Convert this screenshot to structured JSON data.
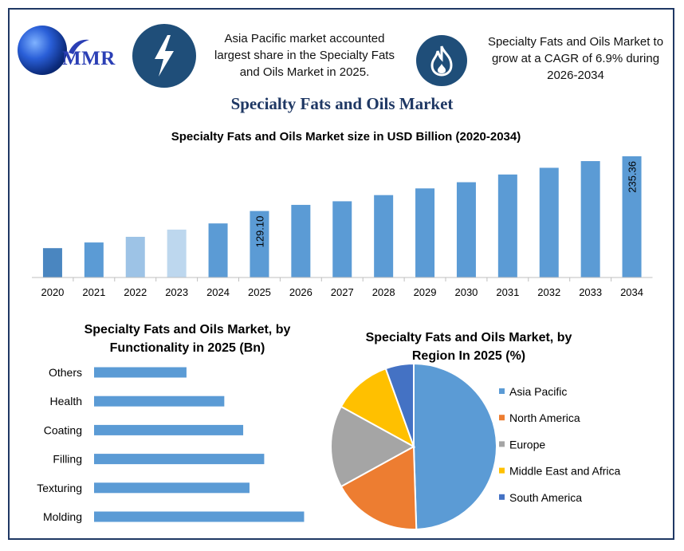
{
  "brand": {
    "logo_text": "MMR"
  },
  "headlines": {
    "left": "Asia Pacific market accounted largest share in the Specialty Fats and Oils Market in 2025.",
    "right": "Specialty Fats and Oils Market to grow at a CAGR of 6.9% during 2026-2034",
    "left_icon": "lightning-icon",
    "right_icon": "flame-icon"
  },
  "page_title": "Specialty Fats and Oils Market",
  "colors": {
    "dark_blue": "#1f4e79",
    "bar_blue": "#5b9bd5",
    "navy": "#1f3864"
  },
  "chart_data": [
    {
      "type": "bar",
      "title": "Specialty Fats and Oils Market size in USD Billion (2020-2034)",
      "categories": [
        "2020",
        "2021",
        "2022",
        "2023",
        "2024",
        "2025",
        "2026",
        "2027",
        "2028",
        "2029",
        "2030",
        "2031",
        "2032",
        "2033",
        "2034"
      ],
      "values": [
        57,
        68,
        79,
        93,
        105,
        129.1,
        141,
        148,
        160,
        173,
        185,
        200,
        213,
        226,
        235.36
      ],
      "data_labels": [
        {
          "category": "2025",
          "label": "129.10"
        },
        {
          "category": "2034",
          "label": "235.36"
        }
      ],
      "bar_colors": [
        "#4a86c0",
        "#5b9bd5",
        "#9dc3e6",
        "#bdd7ee",
        "#5b9bd5",
        "#5b9bd5",
        "#5b9bd5",
        "#5b9bd5",
        "#5b9bd5",
        "#5b9bd5",
        "#5b9bd5",
        "#5b9bd5",
        "#5b9bd5",
        "#5b9bd5",
        "#5b9bd5"
      ],
      "ylim": [
        0,
        240
      ],
      "grid": false,
      "y_axis_visible": false
    },
    {
      "type": "bar",
      "orientation": "horizontal",
      "title": "Specialty Fats and Oils Market, by Functionality in 2025 (Bn)",
      "categories": [
        "Others",
        "Health",
        "Coating",
        "Filling",
        "Texturing",
        "Molding"
      ],
      "values": [
        22,
        31,
        35.5,
        40.5,
        37,
        50
      ],
      "xlim": [
        0,
        52
      ],
      "grid": false
    },
    {
      "type": "pie",
      "title": "Specialty Fats and Oils Market, by Region In 2025 (%)",
      "labels": [
        "Asia Pacific",
        "North America",
        "Europe",
        "Middle East and Africa",
        "South America"
      ],
      "values": [
        49.5,
        17.5,
        16,
        11.5,
        5.5
      ],
      "colors": [
        "#5b9bd5",
        "#ed7d31",
        "#a5a5a5",
        "#ffc000",
        "#4472c4"
      ],
      "legend": "right"
    }
  ]
}
